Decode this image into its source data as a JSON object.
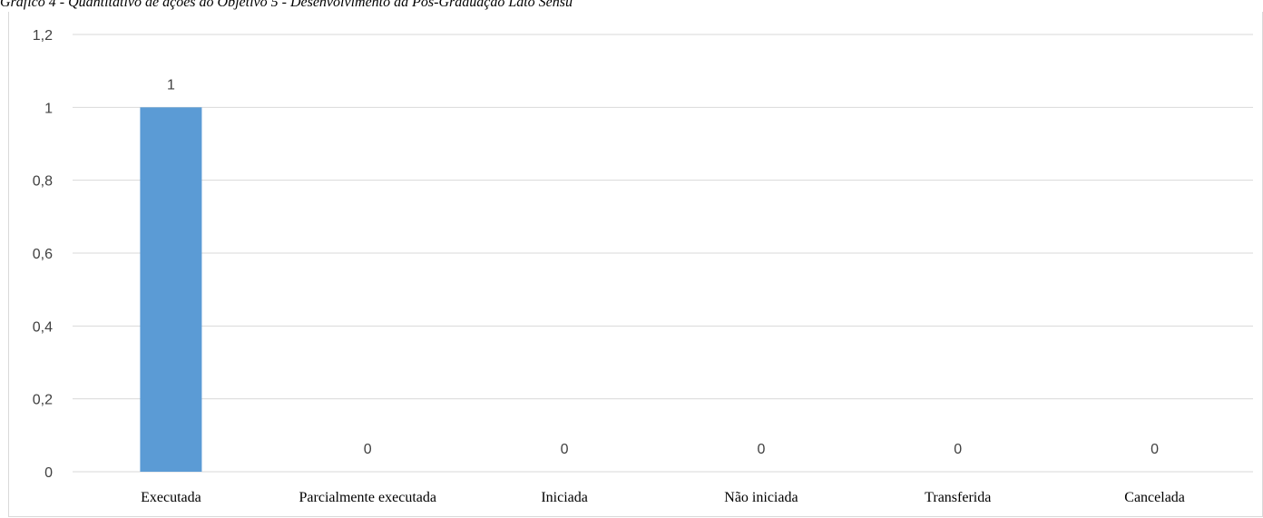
{
  "caption": "Gráfico 4 - Quantitativo de ações do Objetivo 5 - Desenvolvimento da Pós-Graduação Lato Sensu",
  "chart_data": {
    "type": "bar",
    "title": "",
    "xlabel": "",
    "ylabel": "",
    "categories": [
      "Executada",
      "Parcialmente executada",
      "Iniciada",
      "Não iniciada",
      "Transferida",
      "Cancelada"
    ],
    "values": [
      1,
      0,
      0,
      0,
      0,
      0
    ],
    "data_labels": [
      "1",
      "0",
      "0",
      "0",
      "0",
      "0"
    ],
    "ylim": [
      0,
      1.2
    ],
    "yticks": [
      0,
      0.2,
      0.4,
      0.6,
      0.8,
      1,
      1.2
    ],
    "ytick_labels": [
      "0",
      "0,2",
      "0,4",
      "0,6",
      "0,8",
      "1",
      "1,2"
    ],
    "grid": true,
    "legend": "none",
    "bar_color": "#5b9bd5"
  }
}
